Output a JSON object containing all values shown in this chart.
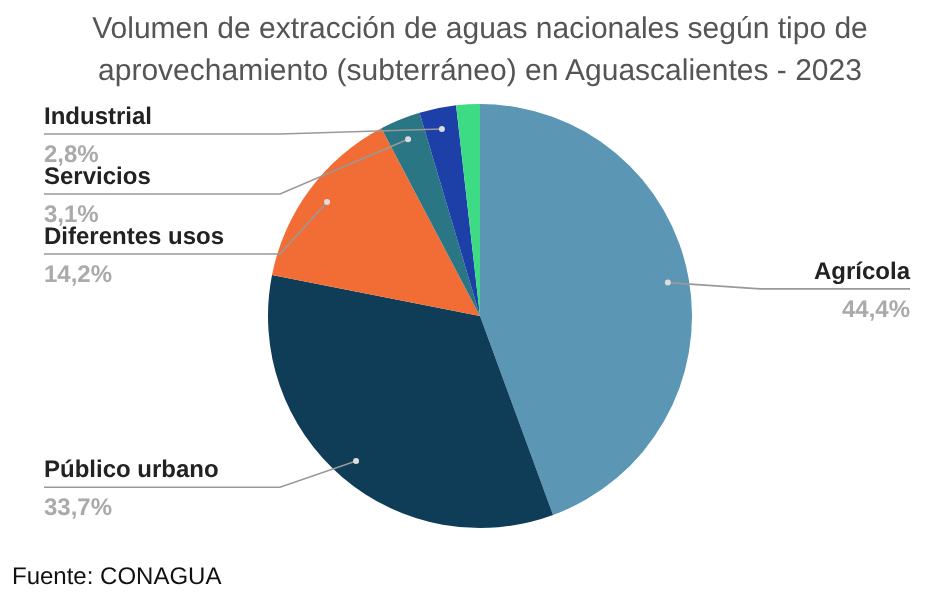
{
  "chart_data": {
    "type": "pie",
    "title": "Volumen de extracción de aguas nacionales según tipo de aprovechamiento (subterráneo) en Aguascalientes - 2023",
    "categories": [
      "Agrícola",
      "Público urbano",
      "Diferentes usos",
      "Servicios",
      "Industrial",
      null
    ],
    "values": [
      44.4,
      33.7,
      14.2,
      3.1,
      2.8,
      1.8
    ],
    "value_labels": [
      "44,4%",
      "33,7%",
      "14,2%",
      "3,1%",
      "2,8%",
      null
    ],
    "colors": [
      "#5b96b4",
      "#0f3d58",
      "#f26d35",
      "#2a7684",
      "#1c3fa8",
      "#3ddc84"
    ],
    "annotations": [
      "Fuente: CONAGUA"
    ]
  }
}
